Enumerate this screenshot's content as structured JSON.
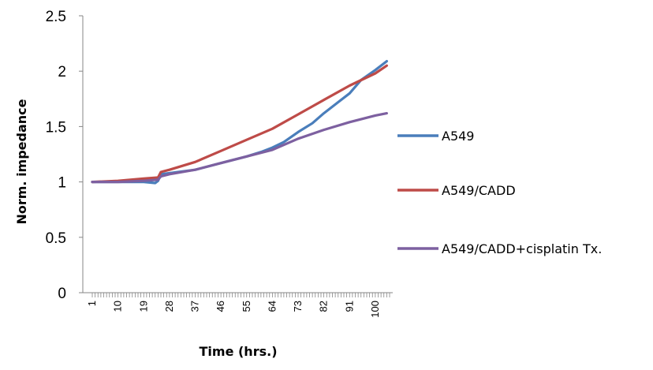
{
  "chart_data": {
    "type": "line",
    "xlabel": "Time (hrs.)",
    "ylabel": "Norm. impedance",
    "ylim": [
      0,
      2.5
    ],
    "y_ticks": [
      "0",
      "0.5",
      "1",
      "1.5",
      "2",
      "2.5"
    ],
    "x_range": [
      1,
      105
    ],
    "x_ticks": [
      "1",
      "10",
      "19",
      "28",
      "37",
      "46",
      "55",
      "64",
      "73",
      "82",
      "91",
      "100"
    ],
    "grid": false,
    "legend_position": "right",
    "series": [
      {
        "name": "A549",
        "color": "#4a7ebb",
        "x": [
          1,
          10,
          19,
          23,
          24,
          25,
          28,
          37,
          46,
          55,
          60,
          64,
          68,
          73,
          78,
          82,
          87,
          91,
          95,
          100,
          104
        ],
        "y": [
          1.0,
          1.0,
          1.0,
          0.99,
          1.01,
          1.07,
          1.08,
          1.11,
          1.17,
          1.23,
          1.27,
          1.31,
          1.36,
          1.45,
          1.53,
          1.62,
          1.72,
          1.8,
          1.92,
          2.01,
          2.09
        ]
      },
      {
        "name": "A549/CADD",
        "color": "#be4b48",
        "x": [
          1,
          10,
          19,
          24,
          25,
          28,
          37,
          46,
          55,
          64,
          73,
          82,
          91,
          100,
          104
        ],
        "y": [
          1.0,
          1.01,
          1.03,
          1.04,
          1.09,
          1.11,
          1.18,
          1.28,
          1.38,
          1.48,
          1.61,
          1.74,
          1.87,
          1.98,
          2.05
        ]
      },
      {
        "name": "A549/CADD+cisplatin Tx.",
        "color": "#7d60a0",
        "x": [
          1,
          10,
          19,
          24,
          25,
          28,
          37,
          46,
          55,
          64,
          73,
          82,
          91,
          100,
          104
        ],
        "y": [
          1.0,
          1.0,
          1.01,
          1.02,
          1.05,
          1.07,
          1.11,
          1.17,
          1.23,
          1.29,
          1.39,
          1.47,
          1.54,
          1.6,
          1.62
        ]
      }
    ]
  }
}
